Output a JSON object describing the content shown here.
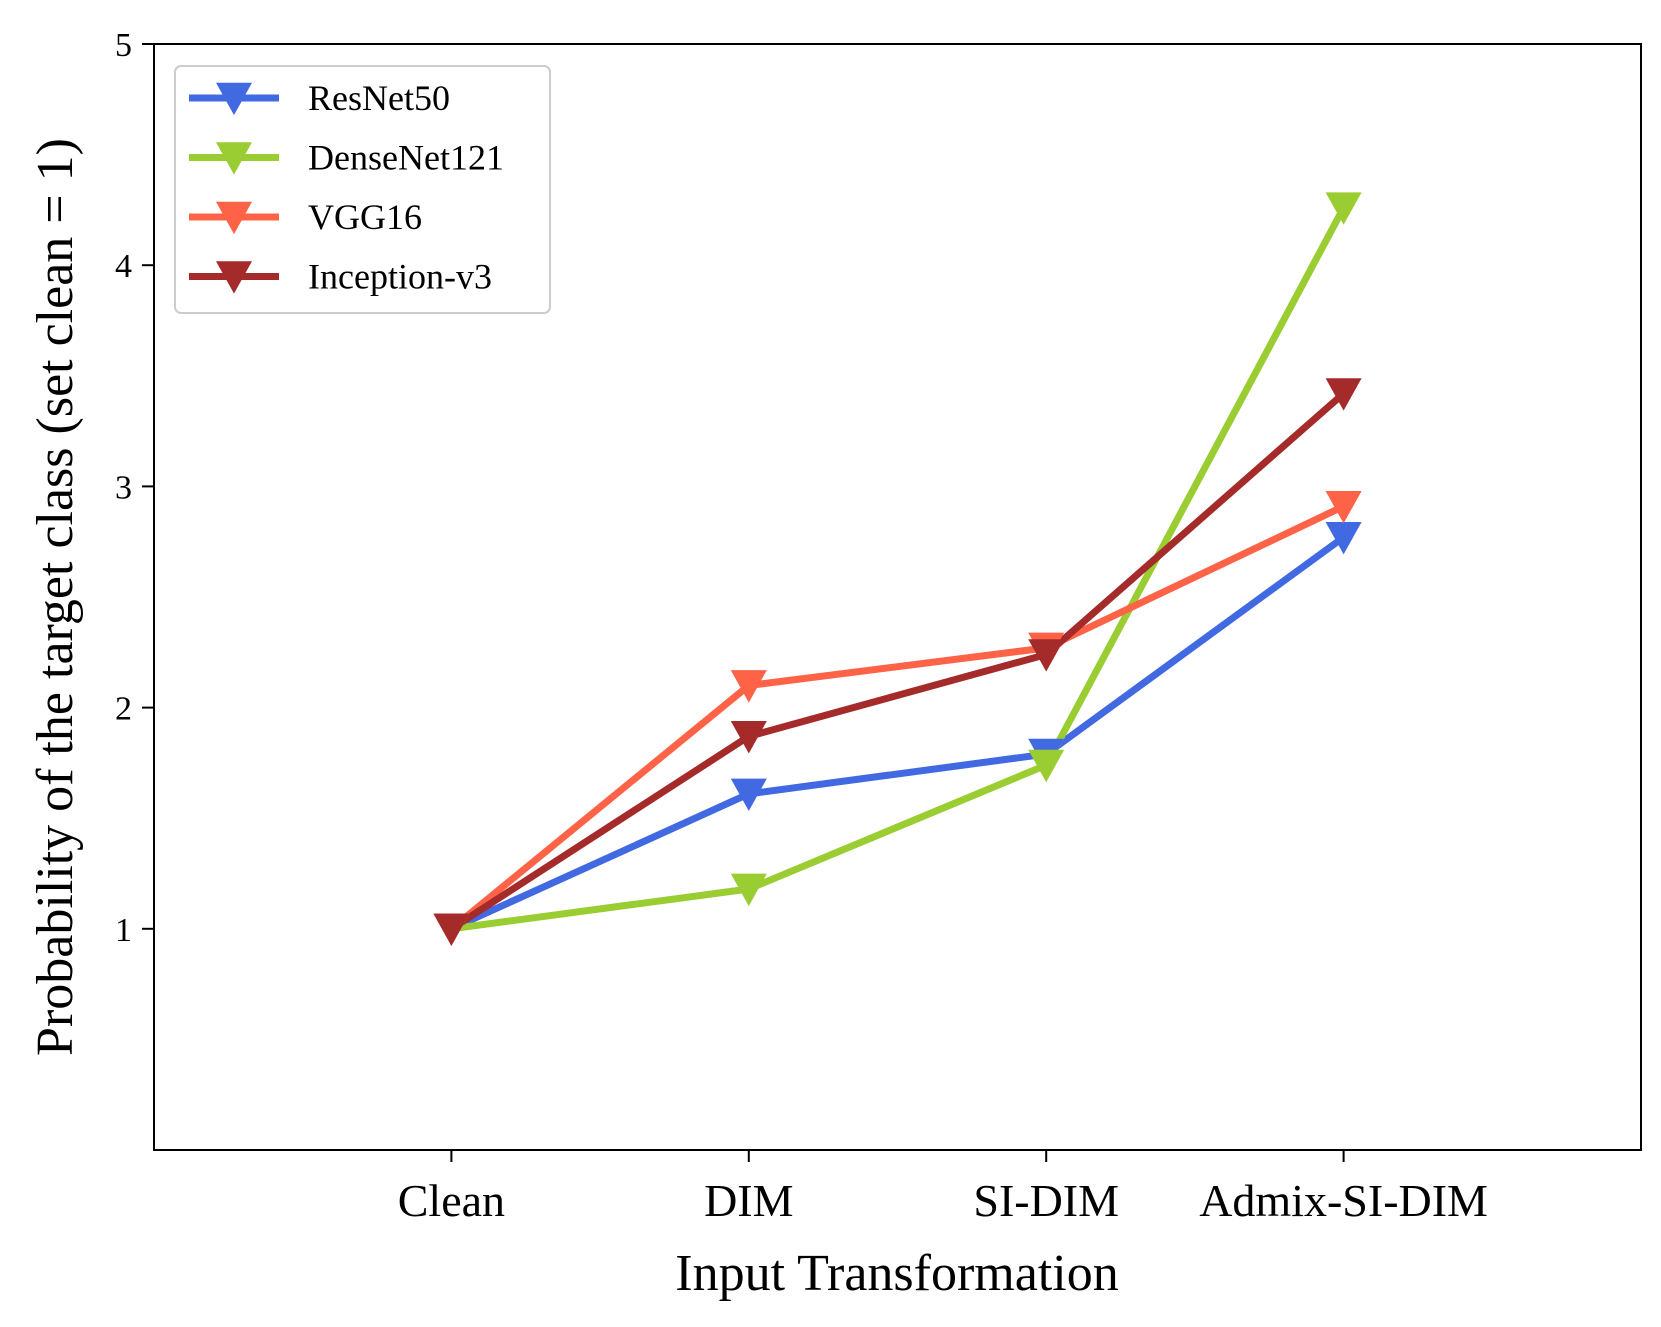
{
  "chart_data": {
    "type": "line",
    "title": "",
    "xlabel": "Input Transformation",
    "ylabel": "Probability of the target class (set clean = 1)",
    "categories": [
      "Clean",
      "DIM",
      "SI-DIM",
      "Admix-SI-DIM"
    ],
    "x_range": [
      -1.0,
      4.0
    ],
    "ylim": [
      0,
      5
    ],
    "yticks": [
      1,
      2,
      3,
      4,
      5
    ],
    "grid": false,
    "legend_position": "top-left",
    "marker": "triangle-down",
    "series": [
      {
        "name": "ResNet50",
        "color": "#4169e1",
        "values": [
          1.0,
          1.61,
          1.79,
          2.77
        ]
      },
      {
        "name": "DenseNet121",
        "color": "#9acd32",
        "values": [
          1.0,
          1.18,
          1.74,
          4.26
        ]
      },
      {
        "name": "VGG16",
        "color": "#ff6347",
        "values": [
          1.0,
          2.1,
          2.27,
          2.91
        ]
      },
      {
        "name": "Inception-v3",
        "color": "#a52a2a",
        "values": [
          1.0,
          1.87,
          2.24,
          3.42
        ]
      }
    ]
  }
}
